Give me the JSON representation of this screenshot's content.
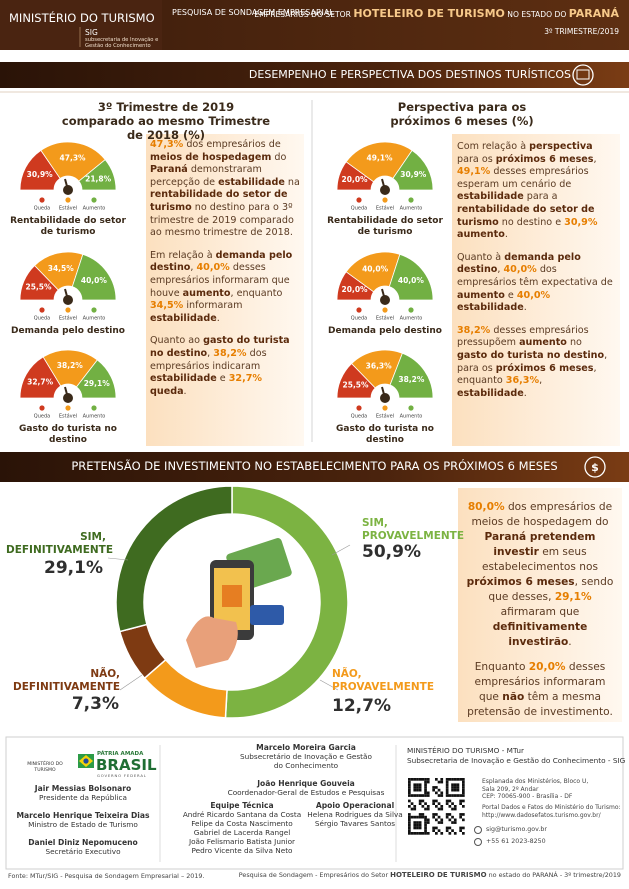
{
  "header": {
    "ministry": "MINISTÉRIO DO TURISMO",
    "unit": "SIG",
    "unit_name": "subsecretaria de Inovação e Gestão do Conhecimento",
    "survey": "PESQUISA DE SONDAGEM EMPRESARIAL",
    "title_segments": [
      "EMPRESÁRIOS DO SETOR ",
      {
        "text": "HOTELEIRO DE TURISMO",
        "bold": true
      },
      " NO ESTADO DO ",
      {
        "text": "PARANÁ",
        "bold": true
      }
    ],
    "period": "3º TRIMESTRE/2019"
  },
  "sections": {
    "desempenho": "DESEMPENHO E PERSPECTIVA DOS DESTINOS TURÍSTICOS",
    "investimento": "PRETENSÃO DE INVESTIMENTO NO ESTABELECIMENTO PARA OS PRÓXIMOS 6 MESES"
  },
  "column_titles": [
    "3º Trimestre de 2019 comparado ao mesmo Trimestre de 2018 (%)",
    "Perspectiva para os próximos 6 meses (%)"
  ],
  "chart_data": [
    {
      "type": "gauge",
      "title": "Rentabilidade do setor de turismo",
      "categories": [
        "Queda",
        "Estável",
        "Aumento"
      ],
      "values": [
        30.9,
        47.3,
        21.8
      ],
      "value_labels": [
        "30,9%",
        "47,3%",
        "21,8%"
      ],
      "colors": [
        "#cf3a1f",
        "#f39a1b",
        "#72b043"
      ]
    },
    {
      "type": "gauge",
      "title": "Demanda pelo destino",
      "categories": [
        "Queda",
        "Estável",
        "Aumento"
      ],
      "values": [
        25.5,
        34.5,
        40.0
      ],
      "value_labels": [
        "25,5%",
        "34,5%",
        "40,0%"
      ],
      "colors": [
        "#cf3a1f",
        "#f39a1b",
        "#72b043"
      ]
    },
    {
      "type": "gauge",
      "title": "Gasto do turista no destino",
      "categories": [
        "Queda",
        "Estável",
        "Aumento"
      ],
      "values": [
        32.7,
        38.2,
        29.1
      ],
      "value_labels": [
        "32,7%",
        "38,2%",
        "29,1%"
      ],
      "colors": [
        "#cf3a1f",
        "#f39a1b",
        "#72b043"
      ]
    },
    {
      "type": "gauge",
      "title": "Rentabilidade do setor de turismo",
      "categories": [
        "Queda",
        "Estável",
        "Aumento"
      ],
      "values": [
        20.0,
        49.1,
        30.9
      ],
      "value_labels": [
        "20,0%",
        "49,1%",
        "30,9%"
      ],
      "colors": [
        "#cf3a1f",
        "#f39a1b",
        "#72b043"
      ]
    },
    {
      "type": "gauge",
      "title": "Demanda pelo destino",
      "categories": [
        "Queda",
        "Estável",
        "Aumento"
      ],
      "values": [
        20.0,
        40.0,
        40.0
      ],
      "value_labels": [
        "20,0%",
        "40,0%",
        "40,0%"
      ],
      "colors": [
        "#cf3a1f",
        "#f39a1b",
        "#72b043"
      ]
    },
    {
      "type": "gauge",
      "title": "Gasto do turista no destino",
      "categories": [
        "Queda",
        "Estável",
        "Aumento"
      ],
      "values": [
        25.5,
        36.3,
        38.2
      ],
      "value_labels": [
        "25,5%",
        "36,3%",
        "38,2%"
      ],
      "colors": [
        "#cf3a1f",
        "#f39a1b",
        "#72b043"
      ]
    },
    {
      "type": "donut",
      "categories": [
        "SIM, PROVAVELMENTE",
        "NÃO, PROVAVELMENTE",
        "NÃO, DEFINITIVAMENTE",
        "SIM, DEFINITIVAMENTE"
      ],
      "values": [
        50.9,
        12.7,
        7.3,
        29.1
      ],
      "value_labels": [
        "50,9%",
        "12,7%",
        "7,3%",
        "29,1%"
      ],
      "colors": [
        "#7cb342",
        "#f39a1b",
        "#7e3a12",
        "#3f6b20"
      ]
    }
  ],
  "text_boxes": {
    "desempenho": [
      [
        {
          "text": "47,3%",
          "bold": true
        },
        " dos empresários de ",
        {
          "text": "meios de hospedagem",
          "bold": true
        },
        " do ",
        {
          "text": "Paraná",
          "bold": true
        },
        " demonstraram percepção de ",
        {
          "text": "estabilidade",
          "bold": true
        },
        " na ",
        {
          "text": "rentabilidade do setor de turismo",
          "bold": true
        },
        " no destino para o 3º trimestre de 2019 comparado ao mesmo trimestre de 2018."
      ],
      [
        "Em relação à ",
        {
          "text": "demanda pelo destino",
          "bold": true
        },
        ", ",
        {
          "text": "40,0%",
          "bold": true
        },
        " desses empresários informaram que houve ",
        {
          "text": "aumento",
          "bold": true
        },
        ", enquanto ",
        {
          "text": "34,5%",
          "bold": true
        },
        " informaram ",
        {
          "text": "estabilidade",
          "bold": true
        },
        "."
      ],
      [
        "Quanto ao ",
        {
          "text": "gasto do turista no destino",
          "bold": true
        },
        ", ",
        {
          "text": "38,2%",
          "bold": true
        },
        " dos empresários indicaram ",
        {
          "text": "estabilidade",
          "bold": true
        },
        " e ",
        {
          "text": "32,7%",
          "bold": true
        },
        {
          "text": " queda",
          "bold": true
        },
        "."
      ]
    ],
    "perspectiva": [
      [
        "Com relação à ",
        {
          "text": "perspectiva",
          "bold": true
        },
        " para os ",
        {
          "text": "próximos 6 meses",
          "bold": true
        },
        ", ",
        {
          "text": "49,1%",
          "bold": true
        },
        " desses empresários esperam um cenário de ",
        {
          "text": "estabilidade",
          "bold": true
        },
        " para a ",
        {
          "text": "rentabilidade do setor de turismo",
          "bold": true
        },
        " no destino e ",
        {
          "text": "30,9%",
          "bold": true
        },
        {
          "text": " aumento",
          "bold": true
        },
        "."
      ],
      [
        "Quanto à ",
        {
          "text": "demanda pelo destino",
          "bold": true
        },
        ", ",
        {
          "text": "40,0%",
          "bold": true
        },
        " dos empresários têm expectativa de ",
        {
          "text": "aumento",
          "bold": true
        },
        " e ",
        {
          "text": "40,0%",
          "bold": true
        },
        {
          "text": " estabilidade",
          "bold": true
        },
        "."
      ],
      [
        {
          "text": "38,2%",
          "bold": true
        },
        " desses empresários pressupõem ",
        {
          "text": "aumento",
          "bold": true
        },
        " no ",
        {
          "text": "gasto do turista no destino",
          "bold": true
        },
        ", para os ",
        {
          "text": "próximos 6 meses",
          "bold": true
        },
        ", enquanto ",
        {
          "text": "36,3%",
          "bold": true
        },
        ", ",
        {
          "text": "estabilidade",
          "bold": true
        },
        "."
      ]
    ],
    "investimento": [
      [
        {
          "text": "80,0%",
          "bold": true
        },
        " dos empresários de meios de hospedagem do ",
        {
          "text": "Paraná pretendem investir",
          "bold": true
        },
        " em seus estabelecimentos nos ",
        {
          "text": "próximos 6 meses",
          "bold": true
        },
        ", sendo que desses, ",
        {
          "text": "29,1%",
          "bold": true
        },
        " afirmaram que ",
        {
          "text": "definitivamente investirão",
          "bold": true
        },
        "."
      ],
      [
        "Enquanto ",
        {
          "text": "20,0%",
          "bold": true
        },
        " desses empresários informaram que ",
        {
          "text": "não",
          "bold": true
        },
        " têm a mesma pretensão de investimento."
      ]
    ]
  },
  "footer": {
    "logo_ministry": "MINISTÉRIO DO TURISMO",
    "logo_brasil": [
      "PÁTRIA AMADA",
      "BRASIL",
      "GOVERNO FEDERAL"
    ],
    "people": [
      {
        "name": "Jair Messias Bolsonaro",
        "role": "Presidente da República"
      },
      {
        "name": "Marcelo Henrique Teixeira Dias",
        "role": "Ministro de Estado de Turismo"
      },
      {
        "name": "Daniel Diniz Nepomuceno",
        "role": "Secretário Executivo"
      }
    ],
    "coordination": [
      {
        "name": "Marcelo Moreira Garcia",
        "role": "Subsecretário de Inovação e Gestão do Conhecimento"
      },
      {
        "name": "João Henrique Gouveia",
        "role": "Coordenador-Geral de Estudos e Pesquisas"
      }
    ],
    "team": {
      "title": "Equipe Técnica",
      "members": [
        "André Ricardo Santana da Costa",
        "Felipe da Costa Nascimento",
        "Gabriel de Lacerda Rangel",
        "João Felismario Batista Junior",
        "Pedro Vicente da Silva Neto"
      ]
    },
    "support": {
      "title": "Apoio Operacional",
      "members": [
        "Helena Rodrigues da Silva",
        "Sérgio Tavares Santos"
      ]
    },
    "contact": {
      "org": "MINISTÉRIO DO TURISMO - MTur",
      "sub": "Subsecretaria de Inovação e Gestão do Conhecimento - SIG",
      "address": [
        "Esplanada dos Ministérios, Bloco U,",
        "Sala 209, 2º Andar",
        "CEP: 70065-900 - Brasília - DF"
      ],
      "portal": [
        "Portal Dados e Fatos do Ministério do Turismo:",
        "http://www.dadosefatos.turismo.gov.br/"
      ],
      "email": "sig@turismo.gov.br",
      "phone": "+55 61 2023-8250"
    },
    "source": "Fonte: MTur/SIG - Pesquisa de Sondagem Empresarial – 2019.",
    "bottom_segments": [
      "Pesquisa de Sondagem - Empresários do Setor ",
      {
        "text": "HOTELEIRO DE TURISMO",
        "bold": true
      },
      " no estado do PARANÁ - 3º trimestre/2019"
    ]
  }
}
